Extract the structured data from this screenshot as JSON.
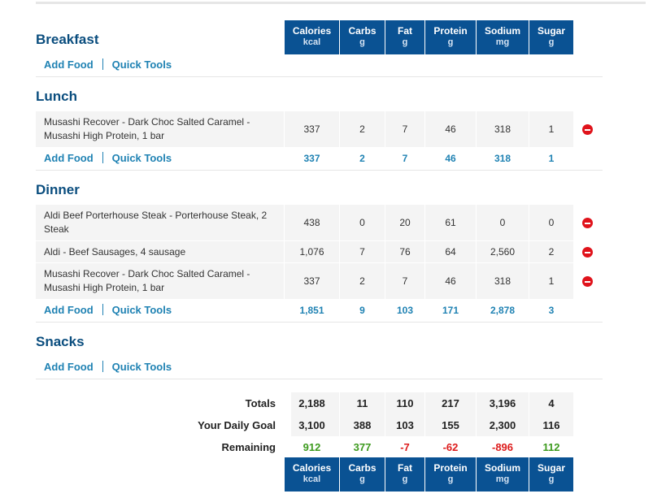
{
  "columns": [
    {
      "name": "Calories",
      "unit": "kcal"
    },
    {
      "name": "Carbs",
      "unit": "g"
    },
    {
      "name": "Fat",
      "unit": "g"
    },
    {
      "name": "Protein",
      "unit": "g"
    },
    {
      "name": "Sodium",
      "unit": "mg"
    },
    {
      "name": "Sugar",
      "unit": "g"
    }
  ],
  "links": {
    "add_food": "Add Food",
    "quick_tools": "Quick Tools"
  },
  "breakfast": {
    "title": "Breakfast"
  },
  "lunch": {
    "title": "Lunch",
    "items": [
      {
        "line1": "Musashi Recover - Dark Choc Salted Caramel -",
        "line2": "Musashi High Protein, 1 bar",
        "values": [
          "337",
          "2",
          "7",
          "46",
          "318",
          "1"
        ]
      }
    ],
    "totals": [
      "337",
      "2",
      "7",
      "46",
      "318",
      "1"
    ]
  },
  "dinner": {
    "title": "Dinner",
    "items": [
      {
        "line1": "Aldi Beef Porterhouse Steak - Porterhouse Steak, 2",
        "line2": "Steak",
        "values": [
          "438",
          "0",
          "20",
          "61",
          "0",
          "0"
        ]
      },
      {
        "line1": "Aldi - Beef Sausages, 4 sausage",
        "line2": "",
        "values": [
          "1,076",
          "7",
          "76",
          "64",
          "2,560",
          "2"
        ]
      },
      {
        "line1": "Musashi Recover - Dark Choc Salted Caramel -",
        "line2": "Musashi High Protein, 1 bar",
        "values": [
          "337",
          "2",
          "7",
          "46",
          "318",
          "1"
        ]
      }
    ],
    "totals": [
      "1,851",
      "9",
      "103",
      "171",
      "2,878",
      "3"
    ]
  },
  "snacks": {
    "title": "Snacks"
  },
  "summary": {
    "totals_label": "Totals",
    "totals": [
      "2,188",
      "11",
      "110",
      "217",
      "3,196",
      "4"
    ],
    "goal_label": "Your Daily Goal",
    "goal": [
      "3,100",
      "388",
      "103",
      "155",
      "2,300",
      "116"
    ],
    "remaining_label": "Remaining",
    "remaining": [
      "912",
      "377",
      "-7",
      "-62",
      "-896",
      "112"
    ]
  },
  "colors": {
    "header_blue": "#0a5293",
    "link_blue": "#1f82b3",
    "remaining_positive": "#3c9a1d",
    "remaining_negative": "#dd1b1b",
    "remove_red": "#e0131b"
  }
}
